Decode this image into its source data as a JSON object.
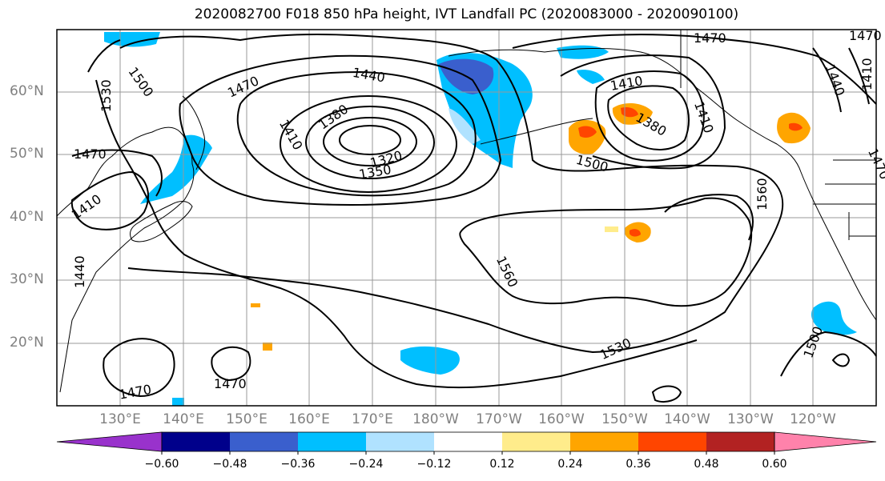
{
  "title": "2020082700 F018 850 hPa height, IVT Landfall PC (2020083000 - 2020090100)",
  "lat_labels": [
    "60°N",
    "50°N",
    "40°N",
    "30°N",
    "20°N"
  ],
  "lon_labels": [
    "130°E",
    "140°E",
    "150°E",
    "160°E",
    "170°E",
    "180°W",
    "170°W",
    "160°W",
    "150°W",
    "140°W",
    "130°W",
    "120°W"
  ],
  "contour_labels": [
    "1500",
    "1530",
    "1470",
    "1440",
    "1380",
    "1410",
    "1350",
    "1320",
    "1470",
    "1410",
    "1440",
    "1470",
    "1410",
    "1380",
    "1410",
    "1440",
    "1410",
    "1470",
    "1470",
    "1500",
    "1560",
    "1560",
    "1530",
    "1500",
    "1470",
    "1470"
  ],
  "colorbar": {
    "ticks": [
      "−0.60",
      "−0.48",
      "−0.36",
      "−0.24",
      "−0.12",
      "0.12",
      "0.24",
      "0.36",
      "0.48",
      "0.60"
    ],
    "colors": [
      "#9932cc",
      "#00008b",
      "#3a5fcd",
      "#00bfff",
      "#b0e2ff",
      "#ffffff",
      "#ffec8b",
      "#ffa500",
      "#ff4500",
      "#b22222",
      "#ff82ab"
    ]
  },
  "shading_colors": {
    "dark_blue": "#3a5fcd",
    "blue": "#00bfff",
    "light_blue": "#b0e2ff",
    "yellow": "#ffec8b",
    "orange": "#ffa500",
    "red_orange": "#ff4500"
  }
}
